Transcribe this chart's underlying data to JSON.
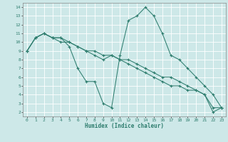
{
  "xlabel": "Humidex (Indice chaleur)",
  "bg_color": "#cde8e8",
  "grid_color": "#ffffff",
  "line_color": "#2e7d6e",
  "xlim": [
    -0.5,
    23.5
  ],
  "ylim": [
    1.5,
    14.5
  ],
  "xticks": [
    0,
    1,
    2,
    3,
    4,
    5,
    6,
    7,
    8,
    9,
    10,
    11,
    12,
    13,
    14,
    15,
    16,
    17,
    18,
    19,
    20,
    21,
    22,
    23
  ],
  "yticks": [
    2,
    3,
    4,
    5,
    6,
    7,
    8,
    9,
    10,
    11,
    12,
    13,
    14
  ],
  "series": [
    {
      "x": [
        0,
        1,
        2,
        3,
        4,
        5,
        6,
        7,
        8,
        9,
        10,
        11,
        12,
        13,
        14,
        15,
        16,
        17,
        18,
        19,
        20,
        21,
        22,
        23
      ],
      "y": [
        9.0,
        10.5,
        11.0,
        10.5,
        10.5,
        10.0,
        9.5,
        9.0,
        9.0,
        8.5,
        8.5,
        8.0,
        8.0,
        7.5,
        7.0,
        6.5,
        6.0,
        6.0,
        5.5,
        5.0,
        4.5,
        4.0,
        2.5,
        2.5
      ]
    },
    {
      "x": [
        0,
        1,
        2,
        3,
        4,
        5,
        6,
        7,
        8,
        9,
        10,
        11,
        12,
        13,
        14,
        15,
        16,
        17,
        18,
        19,
        20,
        21,
        22,
        23
      ],
      "y": [
        9.0,
        10.5,
        11.0,
        10.5,
        10.5,
        9.5,
        7.0,
        5.5,
        5.5,
        3.0,
        2.5,
        8.5,
        12.5,
        13.0,
        14.0,
        13.0,
        11.0,
        8.5,
        8.0,
        7.0,
        6.0,
        5.0,
        4.0,
        2.5
      ]
    },
    {
      "x": [
        0,
        1,
        2,
        3,
        4,
        5,
        6,
        7,
        8,
        9,
        10,
        11,
        12,
        13,
        14,
        15,
        16,
        17,
        18,
        19,
        20,
        21,
        22,
        23
      ],
      "y": [
        9.0,
        10.5,
        11.0,
        10.5,
        10.0,
        10.0,
        9.5,
        9.0,
        8.5,
        8.0,
        8.5,
        8.0,
        7.5,
        7.0,
        6.5,
        6.0,
        5.5,
        5.0,
        5.0,
        4.5,
        4.5,
        4.0,
        2.0,
        2.5
      ]
    }
  ]
}
